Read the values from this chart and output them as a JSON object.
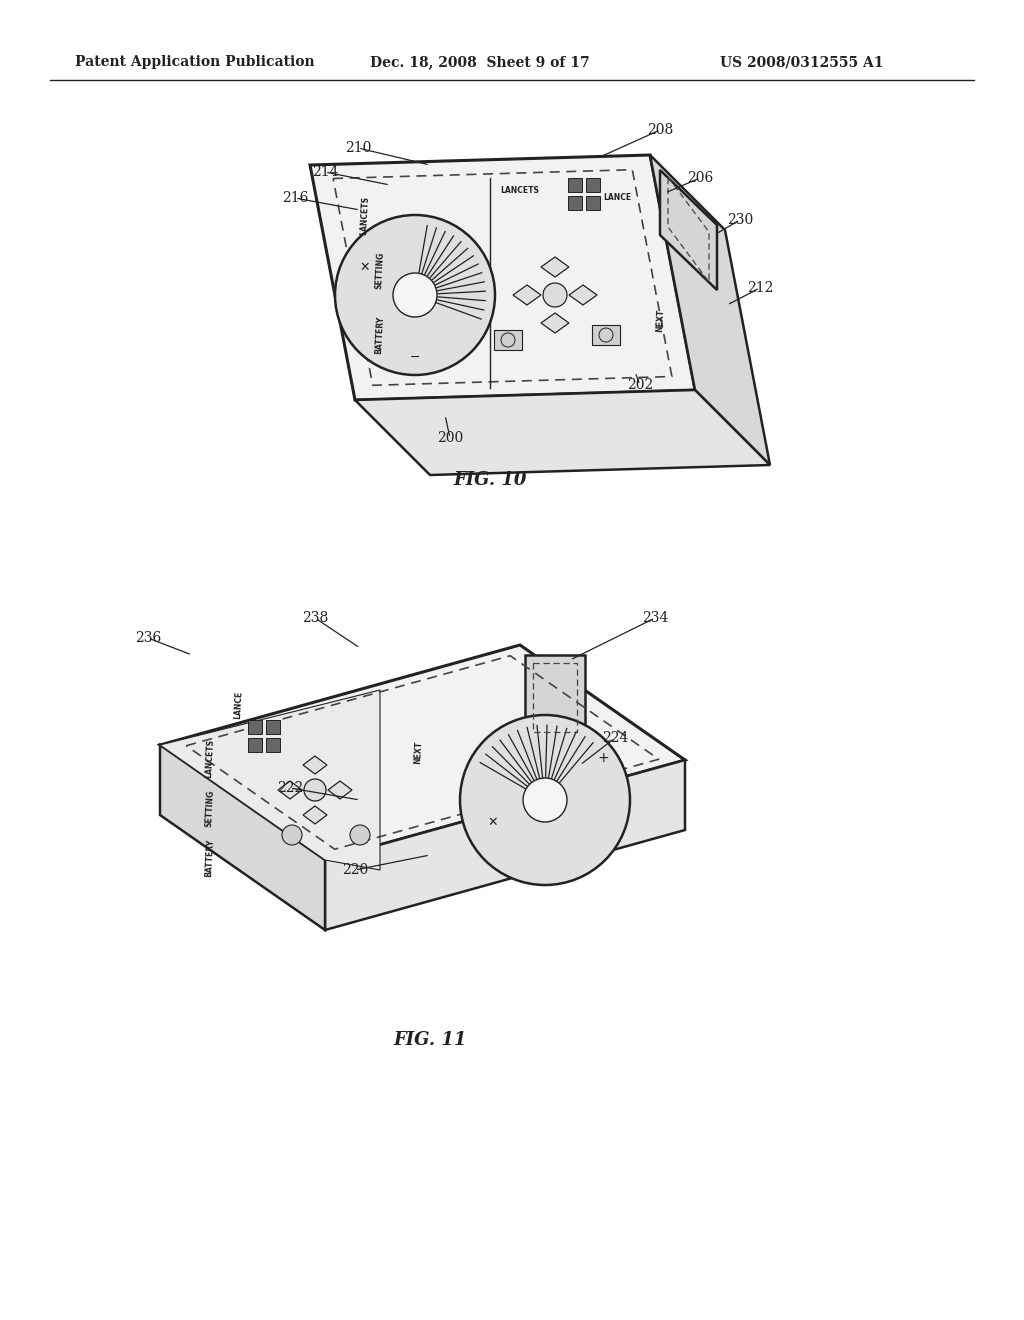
{
  "background_color": "#ffffff",
  "header_left": "Patent Application Publication",
  "header_mid": "Dec. 18, 2008  Sheet 9 of 17",
  "header_right": "US 2008/0312555 A1",
  "fig10_label": "FIG. 10",
  "fig11_label": "FIG. 11"
}
